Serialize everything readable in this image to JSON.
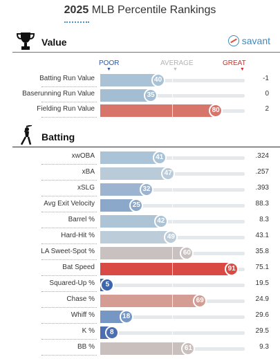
{
  "header": {
    "title_bold": "2025",
    "title_rest": " MLB Percentile Rankings"
  },
  "brand": {
    "label": "savant"
  },
  "scale": {
    "poor": "POOR",
    "average": "AVERAGE",
    "great": "GREAT"
  },
  "sections": [
    {
      "title": "Value",
      "icon": "trophy-icon",
      "rows": [
        {
          "label": "Batting Run Value",
          "percentile": 40,
          "value": "-1",
          "color": "#a9c2d6"
        },
        {
          "label": "Baserunning Run Value",
          "percentile": 35,
          "value": "0",
          "color": "#a3bdd2"
        },
        {
          "label": "Fielding Run Value",
          "percentile": 80,
          "value": "2",
          "color": "#d8756a"
        }
      ]
    },
    {
      "title": "Batting",
      "icon": "batter-icon",
      "rows": [
        {
          "label": "xwOBA",
          "percentile": 41,
          "value": ".324",
          "color": "#abc3d6"
        },
        {
          "label": "xBA",
          "percentile": 47,
          "value": ".257",
          "color": "#b9cbd9"
        },
        {
          "label": "xSLG",
          "percentile": 32,
          "value": ".393",
          "color": "#9cb4cf"
        },
        {
          "label": "Avg Exit Velocity",
          "percentile": 25,
          "value": "88.3",
          "color": "#8ba8ca"
        },
        {
          "label": "Barrel %",
          "percentile": 42,
          "value": "8.3",
          "color": "#adc4d6"
        },
        {
          "label": "Hard-Hit %",
          "percentile": 49,
          "value": "43.1",
          "color": "#bccdd9"
        },
        {
          "label": "LA Sweet-Spot %",
          "percentile": 60,
          "value": "35.8",
          "color": "#c9c1bf"
        },
        {
          "label": "Bat Speed",
          "percentile": 91,
          "value": "75.1",
          "color": "#d94a44"
        },
        {
          "label": "Squared-Up %",
          "percentile": 5,
          "value": "19.5",
          "color": "#3d66ad"
        },
        {
          "label": "Chase %",
          "percentile": 69,
          "value": "24.9",
          "color": "#d49c93"
        },
        {
          "label": "Whiff %",
          "percentile": 18,
          "value": "29.6",
          "color": "#7696c4"
        },
        {
          "label": "K %",
          "percentile": 8,
          "value": "29.5",
          "color": "#4c6fb2"
        },
        {
          "label": "BB %",
          "percentile": 61,
          "value": "9.3",
          "color": "#c9bfbc"
        }
      ]
    }
  ]
}
